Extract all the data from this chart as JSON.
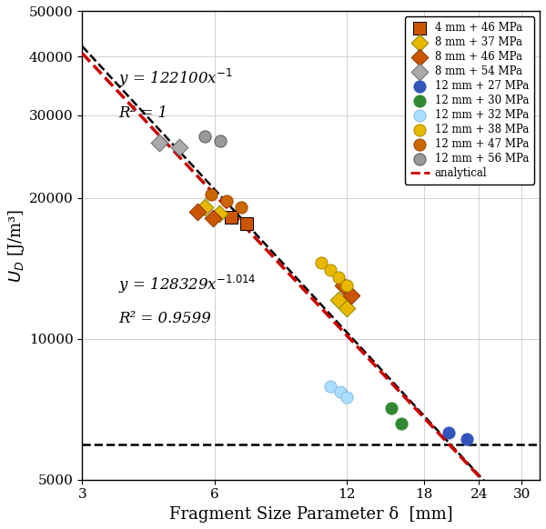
{
  "xlabel": "Fragment Size Parameter δ  [mm]",
  "xlim_log": [
    3,
    33
  ],
  "ylim_log": [
    5000,
    50000
  ],
  "xticks": [
    3,
    6,
    12,
    18,
    24,
    30
  ],
  "yticks": [
    5000,
    10000,
    20000,
    30000,
    40000,
    50000
  ],
  "analytical_A": 122100,
  "analytical_exp": -1,
  "fit_A": 128329,
  "fit_exp": -1.014,
  "horizontal_line_y": 5950,
  "analytical_color": "#cc0000",
  "fit_color": "#000000",
  "eq_top_line1": "y = 122100x",
  "eq_top_exp": "-1",
  "eq_top_line2": "R² = 1",
  "eq_bot_line1": "y = 128329x",
  "eq_bot_exp": "-1.014",
  "eq_bot_line2": "R² = 0.9599",
  "series": [
    {
      "label": "4 mm + 46 MPa",
      "marker": "s",
      "color": "#cc5500",
      "edgecolor": "#000000",
      "x": [
        6.55,
        7.1
      ],
      "y": [
        18200,
        17600
      ]
    },
    {
      "label": "8 mm + 37 MPa",
      "marker": "D",
      "color": "#e8b800",
      "edgecolor": "#888800",
      "x": [
        5.7,
        6.15,
        11.5,
        12.0
      ],
      "y": [
        19100,
        18500,
        12100,
        11600
      ]
    },
    {
      "label": "8 mm + 46 MPa",
      "marker": "D",
      "color": "#cc5500",
      "edgecolor": "#883300",
      "x": [
        5.5,
        5.95,
        11.8,
        12.3
      ],
      "y": [
        18700,
        18100,
        13000,
        12400
      ]
    },
    {
      "label": "8 mm + 54 MPa",
      "marker": "D",
      "color": "#aaaaaa",
      "edgecolor": "#666666",
      "x": [
        4.5,
        5.0
      ],
      "y": [
        26200,
        25600
      ]
    },
    {
      "label": "12 mm + 27 MPa",
      "marker": "o",
      "color": "#3355bb",
      "edgecolor": "#3355bb",
      "x": [
        20.5,
        22.5
      ],
      "y": [
        6300,
        6100
      ]
    },
    {
      "label": "12 mm + 30 MPa",
      "marker": "o",
      "color": "#338833",
      "edgecolor": "#338833",
      "x": [
        15.2,
        16.0
      ],
      "y": [
        7100,
        6600
      ]
    },
    {
      "label": "12 mm + 32 MPa",
      "marker": "o",
      "color": "#aaddff",
      "edgecolor": "#88bbdd",
      "x": [
        11.0,
        11.6,
        12.0
      ],
      "y": [
        7900,
        7700,
        7500
      ]
    },
    {
      "label": "12 mm + 38 MPa",
      "marker": "o",
      "color": "#e8b800",
      "edgecolor": "#aa8800",
      "x": [
        10.5,
        11.0,
        11.5,
        12.0
      ],
      "y": [
        14500,
        14000,
        13500,
        13000
      ]
    },
    {
      "label": "12 mm + 47 MPa",
      "marker": "o",
      "color": "#cc6600",
      "edgecolor": "#994400",
      "x": [
        5.9,
        6.4,
        6.9
      ],
      "y": [
        20300,
        19700,
        19100
      ]
    },
    {
      "label": "12 mm + 56 MPa",
      "marker": "o",
      "color": "#999999",
      "edgecolor": "#555555",
      "x": [
        5.7,
        6.2
      ],
      "y": [
        27100,
        26500
      ]
    }
  ]
}
